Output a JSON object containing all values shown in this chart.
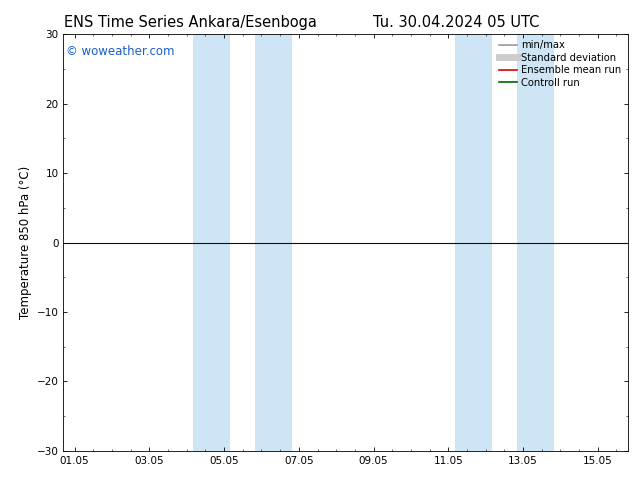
{
  "title": "ENS Time Series Ankara/Esenboga",
  "title2": "Tu. 30.04.2024 05 UTC",
  "ylabel": "Temperature 850 hPa (°C)",
  "ylim": [
    -30,
    30
  ],
  "yticks": [
    -30,
    -20,
    -10,
    0,
    10,
    20,
    30
  ],
  "xtick_labels": [
    "01.05",
    "03.05",
    "05.05",
    "07.05",
    "09.05",
    "11.05",
    "13.05",
    "15.05"
  ],
  "xtick_positions": [
    0,
    2,
    4,
    6,
    8,
    10,
    12,
    14
  ],
  "xlim": [
    -0.3,
    14.8
  ],
  "shaded_bands": [
    {
      "x_start": 3.17,
      "x_end": 4.17
    },
    {
      "x_start": 4.83,
      "x_end": 5.83
    },
    {
      "x_start": 10.17,
      "x_end": 11.17
    },
    {
      "x_start": 11.83,
      "x_end": 12.83
    }
  ],
  "shade_color": "#cde5f5",
  "watermark": "© woweather.com",
  "watermark_color": "#1a5fcc",
  "legend_items": [
    {
      "label": "min/max",
      "color": "#999999",
      "lw": 1.2,
      "style": "solid"
    },
    {
      "label": "Standard deviation",
      "color": "#cccccc",
      "lw": 5,
      "style": "solid"
    },
    {
      "label": "Ensemble mean run",
      "color": "#dd0000",
      "lw": 1.2,
      "style": "solid"
    },
    {
      "label": "Controll run",
      "color": "#006600",
      "lw": 1.2,
      "style": "solid"
    }
  ],
  "zero_line_color": "#111111",
  "zero_line_lw": 0.8,
  "background_color": "white",
  "plot_bg_color": "white",
  "tick_fontsize": 7.5,
  "label_fontsize": 8.5,
  "title_fontsize": 10.5
}
